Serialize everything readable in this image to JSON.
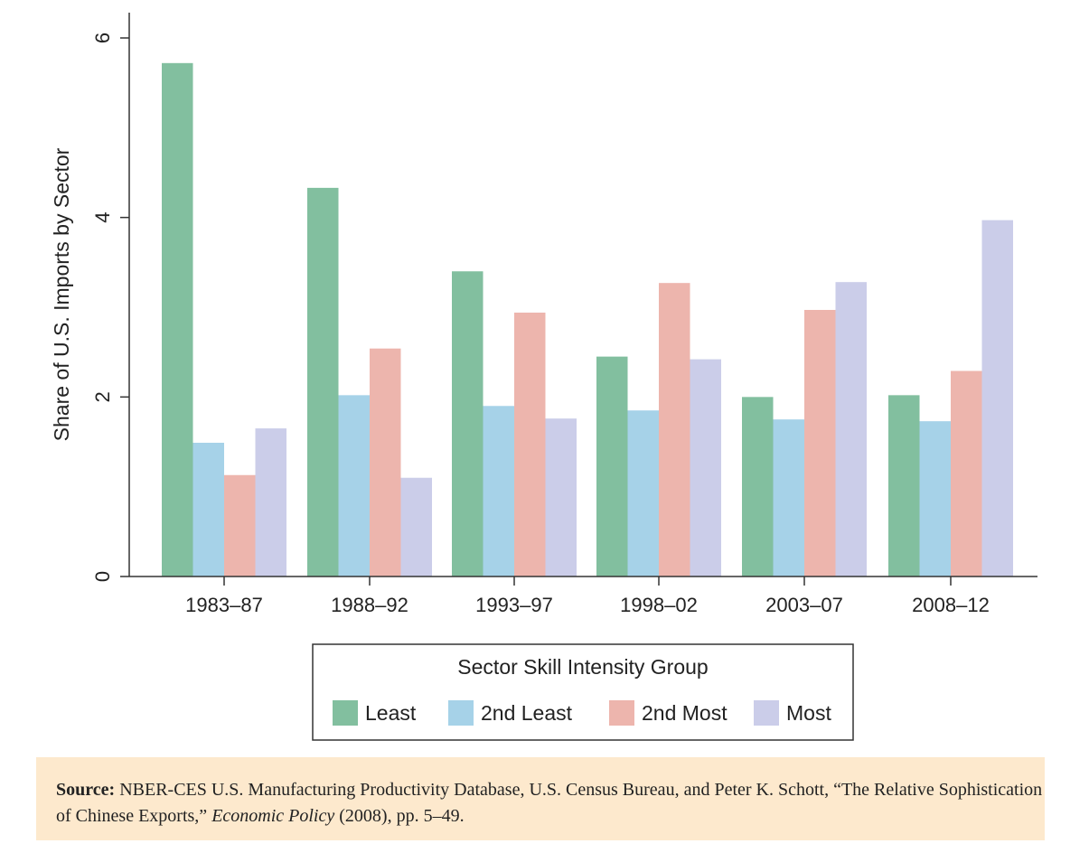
{
  "chart_data": {
    "type": "bar",
    "ylabel": "Share of U.S. Imports by Sector",
    "xlabel": "",
    "categories": [
      "1983–87",
      "1988–92",
      "1993–97",
      "1998–02",
      "2003–07",
      "2008–12"
    ],
    "series": [
      {
        "name": "Least",
        "color": "#82bf9f",
        "values": [
          5.72,
          4.33,
          3.4,
          2.45,
          2.0,
          2.02
        ]
      },
      {
        "name": "2nd Least",
        "color": "#a6d2e8",
        "values": [
          1.49,
          2.02,
          1.9,
          1.85,
          1.75,
          1.73
        ]
      },
      {
        "name": "2nd Most",
        "color": "#edb5ad",
        "values": [
          1.13,
          2.54,
          2.94,
          3.27,
          2.97,
          2.29
        ]
      },
      {
        "name": "Most",
        "color": "#cbcde9",
        "values": [
          1.65,
          1.1,
          1.76,
          2.42,
          3.28,
          3.97
        ]
      }
    ],
    "yticks": [
      0,
      2,
      4,
      6
    ],
    "ylim": [
      0,
      6.3
    ],
    "legend": {
      "title": "Sector Skill Intensity Group",
      "placement": "bottom"
    }
  },
  "source": {
    "label": "Source:",
    "text_before": "NBER-CES U.S. Manufacturing Productivity Database, U.S. Census Bureau, and Peter K. Schott, “The Relative Sophistication of Chinese Exports,” ",
    "italic": "Economic Policy",
    "text_after": " (2008), pp. 5–49."
  }
}
